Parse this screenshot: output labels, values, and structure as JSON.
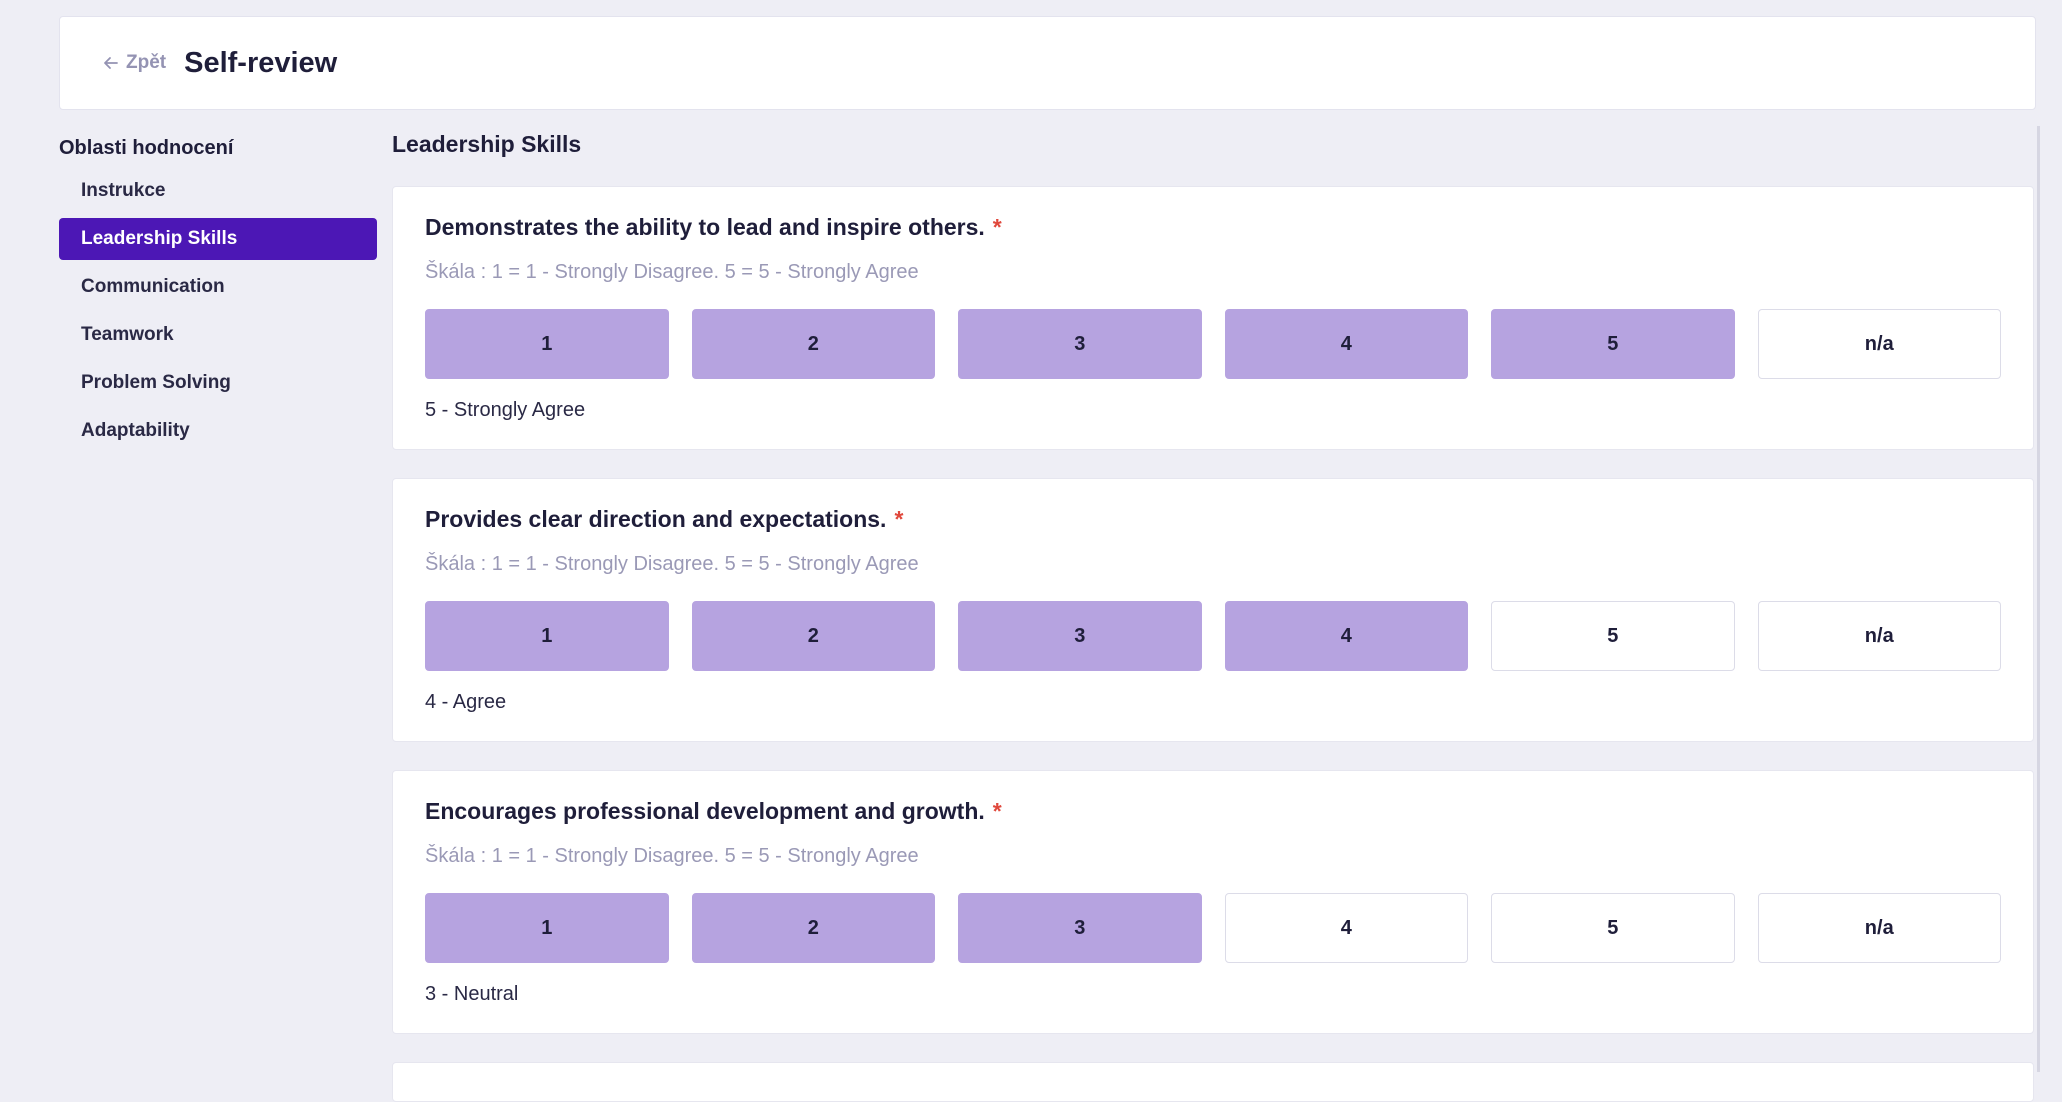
{
  "header": {
    "back_label": "Zpět",
    "title": "Self-review"
  },
  "sidebar": {
    "heading": "Oblasti hodnocení",
    "items": [
      {
        "label": "Instrukce",
        "active": false
      },
      {
        "label": "Leadership Skills",
        "active": true
      },
      {
        "label": "Communication",
        "active": false
      },
      {
        "label": "Teamwork",
        "active": false
      },
      {
        "label": "Problem Solving",
        "active": false
      },
      {
        "label": "Adaptability",
        "active": false
      }
    ]
  },
  "main": {
    "section_title": "Leadership Skills",
    "questions": [
      {
        "title": "Demonstrates the ability to lead and inspire others.",
        "required_mark": "*",
        "scale": "Škála : 1 = 1 - Strongly Disagree. 5 = 5 - Strongly Agree",
        "options": [
          "1",
          "2",
          "3",
          "4",
          "5",
          "n/a"
        ],
        "selected_value": 5,
        "answer": "5 - Strongly Agree"
      },
      {
        "title": "Provides clear direction and expectations.",
        "required_mark": "*",
        "scale": "Škála : 1 = 1 - Strongly Disagree. 5 = 5 - Strongly Agree",
        "options": [
          "1",
          "2",
          "3",
          "4",
          "5",
          "n/a"
        ],
        "selected_value": 4,
        "answer": "4 - Agree"
      },
      {
        "title": "Encourages professional development and growth.",
        "required_mark": "*",
        "scale": "Škála : 1 = 1 - Strongly Disagree. 5 = 5 - Strongly Agree",
        "options": [
          "1",
          "2",
          "3",
          "4",
          "5",
          "n/a"
        ],
        "selected_value": 3,
        "answer": "3 - Neutral"
      }
    ]
  },
  "colors": {
    "accent": "#4c17b5",
    "selected_fill": "#b6a3e0",
    "required": "#e0483c"
  }
}
